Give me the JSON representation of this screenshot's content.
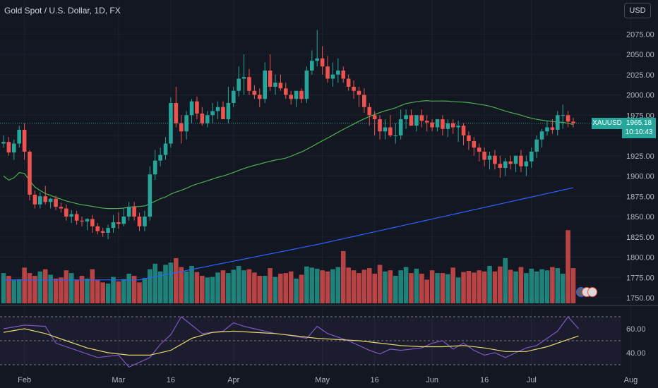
{
  "header": {
    "title": "Gold Spot / U.S. Dollar, 1D, FX",
    "currency_button": "USD"
  },
  "price_tag": {
    "symbol": "XAUUSD",
    "price": "1965.18",
    "countdown": "10:10:43"
  },
  "colors": {
    "background": "#131722",
    "up": "#26a69a",
    "down": "#ef5350",
    "sma_fast": "#4caf50",
    "sma_slow": "#2962ff",
    "rsi": "#7e57c2",
    "rsi_ma": "#e6d86e"
  },
  "chart_data": [
    {
      "type": "candlestick",
      "title": "Gold Spot / U.S. Dollar, 1D, FX",
      "ylim": [
        1740,
        2090
      ],
      "y_ticks": [
        "2075.00",
        "2050.00",
        "2025.00",
        "2000.00",
        "1975.00",
        "1950.00",
        "1925.00",
        "1900.00",
        "1875.00",
        "1850.00",
        "1825.00",
        "1800.00",
        "1775.00",
        "1750.00"
      ],
      "x_ticks": [
        "Feb",
        "Mar",
        "16",
        "Apr",
        "May",
        "16",
        "Jun",
        "16",
        "Jul",
        "Aug"
      ],
      "x_tick_index": [
        4,
        22,
        32,
        44,
        61,
        71,
        82,
        92,
        101,
        120
      ],
      "series": [
        {
          "name": "open",
          "values": [
            1940,
            1942,
            1929,
            1940,
            1957,
            1930,
            1877,
            1865,
            1875,
            1868,
            1872,
            1862,
            1860,
            1850,
            1853,
            1845,
            1844,
            1847,
            1838,
            1832,
            1830,
            1836,
            1843,
            1841,
            1850,
            1862,
            1850,
            1838,
            1850,
            1902,
            1919,
            1926,
            1940,
            1990,
            1965,
            1955,
            1975,
            1992,
            1977,
            1965,
            1975,
            1980,
            1985,
            1970,
            1990,
            2005,
            2020,
            2022,
            2005,
            2000,
            1995,
            2030,
            2010,
            2015,
            2008,
            2000,
            1995,
            2005,
            1995,
            2030,
            2042,
            2045,
            2035,
            2020,
            2025,
            2030,
            2020,
            2010,
            2005,
            2000,
            1985,
            1975,
            1970,
            1955,
            1960,
            1950,
            1950,
            1970,
            1975,
            1962,
            1975,
            1968,
            1966,
            1960,
            1970,
            1958,
            1965,
            1960,
            1962,
            1950,
            1943,
            1935,
            1930,
            1920,
            1925,
            1915,
            1910,
            1918,
            1915,
            1925,
            1912,
            1918,
            1930,
            1945,
            1955,
            1960,
            1957,
            1975,
            1975,
            1967
          ],
          "_": "open"
        },
        {
          "name": "high",
          "values": [
            1950,
            1948,
            1945,
            1962,
            1965,
            1932,
            1882,
            1880,
            1888,
            1873,
            1876,
            1867,
            1865,
            1858,
            1857,
            1850,
            1848,
            1852,
            1842,
            1836,
            1840,
            1852,
            1855,
            1860,
            1868,
            1868,
            1855,
            1857,
            1912,
            1932,
            1935,
            1948,
            1997,
            2010,
            1975,
            1980,
            1995,
            1998,
            1985,
            1980,
            1990,
            1992,
            1992,
            2010,
            2010,
            2035,
            2050,
            2032,
            2012,
            2008,
            2040,
            2050,
            2025,
            2025,
            2015,
            2005,
            2000,
            2008,
            2035,
            2055,
            2080,
            2060,
            2048,
            2040,
            2045,
            2035,
            2025,
            2018,
            2010,
            2008,
            1990,
            1980,
            1975,
            1970,
            1975,
            1965,
            1982,
            1982,
            1982,
            1975,
            1982,
            1975,
            1970,
            1970,
            1975,
            1970,
            1970,
            1968,
            1965,
            1955,
            1948,
            1940,
            1935,
            1930,
            1932,
            1925,
            1922,
            1925,
            1925,
            1932,
            1925,
            1935,
            1950,
            1958,
            1968,
            1970,
            1980,
            1988,
            1980,
            1972
          ],
          "_": "high"
        },
        {
          "name": "low",
          "values": [
            1935,
            1925,
            1920,
            1935,
            1920,
            1870,
            1860,
            1860,
            1865,
            1860,
            1858,
            1855,
            1845,
            1842,
            1840,
            1838,
            1833,
            1830,
            1828,
            1825,
            1822,
            1830,
            1835,
            1838,
            1845,
            1845,
            1832,
            1832,
            1845,
            1895,
            1912,
            1920,
            1935,
            1960,
            1940,
            1945,
            1965,
            1970,
            1962,
            1960,
            1965,
            1970,
            1975,
            1965,
            1985,
            1998,
            2000,
            2000,
            1995,
            1985,
            1990,
            2005,
            2000,
            2005,
            1995,
            1988,
            1985,
            1990,
            1990,
            2025,
            2035,
            2025,
            2015,
            2010,
            2015,
            2015,
            2005,
            1995,
            1985,
            1978,
            1962,
            1950,
            1945,
            1945,
            1948,
            1940,
            1945,
            1958,
            1962,
            1955,
            1960,
            1955,
            1955,
            1955,
            1950,
            1948,
            1952,
            1942,
            1938,
            1932,
            1925,
            1918,
            1912,
            1908,
            1908,
            1898,
            1900,
            1908,
            1905,
            1905,
            1900,
            1910,
            1922,
            1935,
            1950,
            1952,
            1950,
            1958,
            1960,
            1960
          ],
          "_": "low"
        },
        {
          "name": "close",
          "values": [
            1942,
            1929,
            1940,
            1957,
            1930,
            1877,
            1865,
            1875,
            1868,
            1872,
            1862,
            1860,
            1850,
            1853,
            1845,
            1844,
            1847,
            1838,
            1832,
            1830,
            1836,
            1843,
            1841,
            1850,
            1862,
            1850,
            1838,
            1850,
            1902,
            1919,
            1926,
            1940,
            1990,
            1965,
            1955,
            1975,
            1992,
            1977,
            1965,
            1975,
            1980,
            1985,
            1970,
            1990,
            2005,
            2020,
            2022,
            2005,
            2000,
            1995,
            2030,
            2010,
            2015,
            2008,
            2000,
            1995,
            2005,
            1995,
            2030,
            2042,
            2045,
            2035,
            2020,
            2025,
            2030,
            2020,
            2010,
            2005,
            2000,
            1985,
            1975,
            1970,
            1955,
            1960,
            1950,
            1950,
            1970,
            1975,
            1962,
            1975,
            1968,
            1966,
            1960,
            1970,
            1958,
            1965,
            1960,
            1962,
            1950,
            1943,
            1935,
            1930,
            1920,
            1925,
            1915,
            1910,
            1918,
            1915,
            1925,
            1912,
            1918,
            1930,
            1945,
            1955,
            1960,
            1957,
            1975,
            1975,
            1967,
            1965
          ],
          "_": "close"
        },
        {
          "name": "volume",
          "values": [
            55,
            50,
            42,
            44,
            65,
            55,
            50,
            58,
            62,
            52,
            45,
            47,
            60,
            55,
            43,
            50,
            45,
            62,
            42,
            38,
            36,
            48,
            40,
            44,
            54,
            50,
            38,
            46,
            62,
            72,
            58,
            70,
            74,
            82,
            66,
            58,
            68,
            57,
            50,
            47,
            48,
            56,
            60,
            55,
            61,
            68,
            60,
            62,
            56,
            50,
            50,
            64,
            48,
            54,
            55,
            58,
            45,
            52,
            67,
            65,
            63,
            60,
            58,
            62,
            66,
            95,
            65,
            60,
            55,
            61,
            64,
            54,
            70,
            58,
            60,
            50,
            60,
            66,
            55,
            63,
            54,
            43,
            60,
            55,
            55,
            53,
            65,
            47,
            57,
            59,
            56,
            60,
            58,
            68,
            58,
            67,
            82,
            61,
            58,
            66,
            55,
            63,
            58,
            62,
            60,
            66,
            64,
            54,
            133,
            64
          ],
          "_": "volume"
        }
      ]
    },
    {
      "type": "line",
      "series": [
        {
          "name": "RSI",
          "x": [
            0,
            4,
            8,
            10,
            14,
            18,
            22,
            24,
            28,
            30,
            32,
            34,
            36,
            38,
            42,
            44,
            46,
            48,
            50,
            52,
            54,
            58,
            60,
            62,
            64,
            66,
            68,
            70,
            72,
            74,
            76,
            80,
            82,
            84,
            86,
            88,
            90,
            92,
            94,
            96,
            98,
            100,
            102,
            104,
            106,
            108,
            110
          ],
          "values": [
            60,
            63,
            62,
            48,
            42,
            36,
            38,
            28,
            36,
            47,
            55,
            70,
            63,
            56,
            58,
            65,
            62,
            60,
            58,
            56,
            55,
            52,
            62,
            56,
            53,
            50,
            46,
            42,
            39,
            43,
            42,
            44,
            48,
            50,
            43,
            48,
            42,
            38,
            40,
            36,
            40,
            44,
            46,
            52,
            58,
            70,
            60
          ]
        },
        {
          "name": "RSI MA",
          "x": [
            0,
            4,
            8,
            12,
            16,
            20,
            24,
            28,
            32,
            36,
            40,
            44,
            48,
            52,
            56,
            60,
            64,
            68,
            72,
            76,
            80,
            84,
            88,
            92,
            96,
            100,
            104,
            108,
            110
          ],
          "values": [
            57,
            60,
            56,
            50,
            44,
            40,
            38,
            38,
            42,
            52,
            57,
            58,
            57,
            56,
            54,
            52,
            51,
            50,
            48,
            46,
            45,
            45,
            46,
            44,
            41,
            41,
            45,
            51,
            54
          ]
        }
      ],
      "y_ticks": [
        "60.00",
        "40.00"
      ],
      "ylim": [
        28,
        72
      ]
    }
  ]
}
